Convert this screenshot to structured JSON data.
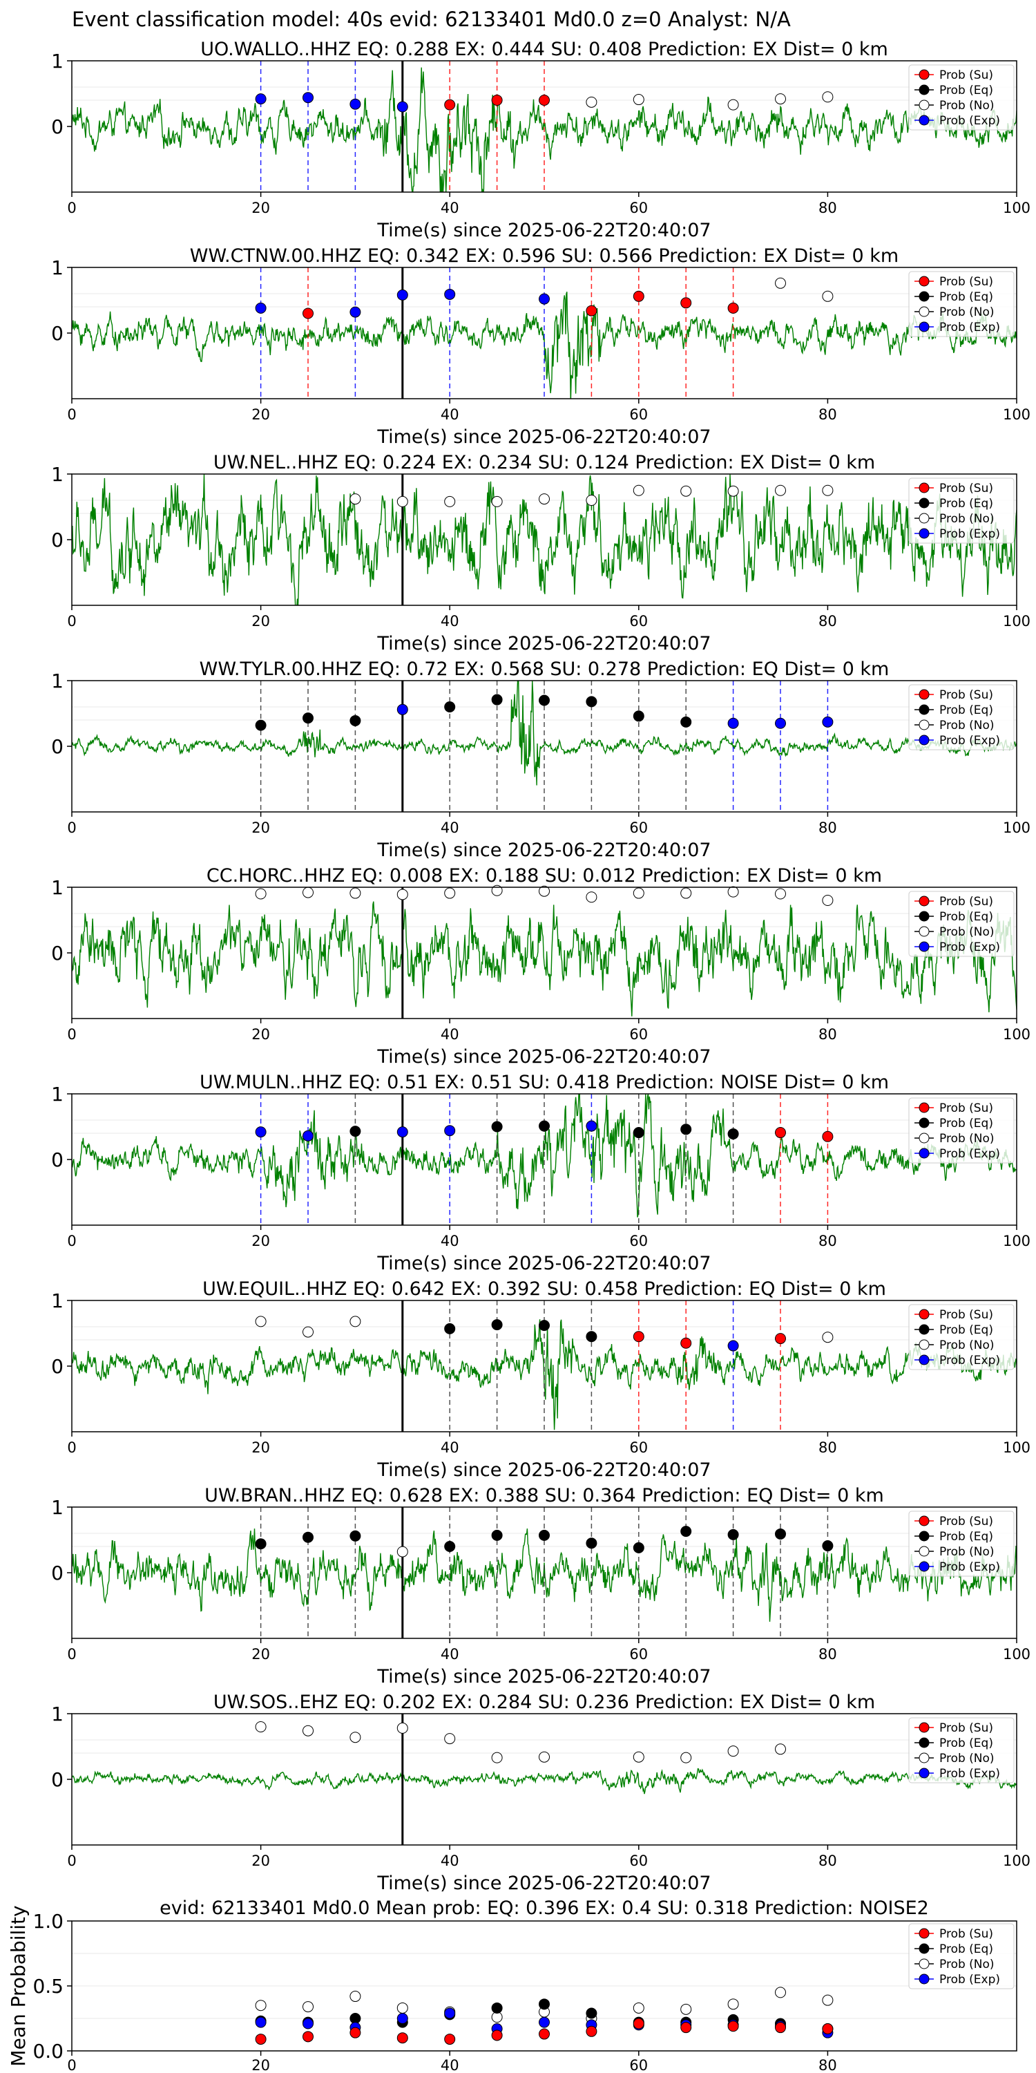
{
  "suptitle": "Event classification model: 40s evid: 62133401 Md0.0 z=0 Analyst: N/A",
  "xlabel": "Time(s) since 2025-06-22T20:40:07",
  "legend": [
    "Prob (Su)",
    "Prob (Eq)",
    "Prob (No)",
    "Prob (Exp)"
  ],
  "colors": {
    "su": "#ff0000",
    "eq": "#000000",
    "no": "#ffffff",
    "exp": "#0000ff",
    "trace": "#008000",
    "marker_line": "#000000"
  },
  "chart_data": [
    {
      "type": "scatter",
      "station": "UO.WALLO..HHZ",
      "eq": "0.288",
      "ex": "0.444",
      "su": "0.408",
      "prediction": "EX",
      "dist": "0 km",
      "title": "UO.WALLO..HHZ   EQ: 0.288  EX: 0.444  SU: 0.408   Prediction: EX    Dist= 0 km",
      "xlim": [
        0,
        100
      ],
      "ylim": [
        -1,
        1
      ],
      "yticks": [
        "1",
        "0"
      ],
      "xticks": [
        "0",
        "20",
        "40",
        "60",
        "80",
        "100"
      ],
      "amp": 0.55,
      "burst": [
        [
          33,
          47,
          1.9
        ]
      ],
      "points": [
        [
          20,
          "exp",
          0.42
        ],
        [
          25,
          "exp",
          0.44
        ],
        [
          30,
          "exp",
          0.34
        ],
        [
          35,
          "exp",
          0.3
        ],
        [
          40,
          "su",
          0.33
        ],
        [
          45,
          "su",
          0.4
        ],
        [
          50,
          "su",
          0.4
        ],
        [
          55,
          "no",
          0.37
        ],
        [
          60,
          "no",
          0.41
        ],
        [
          70,
          "no",
          0.33
        ],
        [
          75,
          "no",
          0.42
        ],
        [
          80,
          "no",
          0.45
        ]
      ]
    },
    {
      "type": "scatter",
      "station": "WW.CTNW.00.HHZ",
      "eq": "0.342",
      "ex": "0.596",
      "su": "0.566",
      "prediction": "EX",
      "dist": "0 km",
      "title": "WW.CTNW.00.HHZ   EQ: 0.342  EX: 0.596  SU: 0.566   Prediction: EX    Dist= 0 km",
      "xlim": [
        0,
        100
      ],
      "ylim": [
        -1,
        1
      ],
      "yticks": [
        "1",
        "0"
      ],
      "xticks": [
        "0",
        "20",
        "40",
        "60",
        "80",
        "100"
      ],
      "amp": 0.45,
      "burst": [
        [
          50,
          56,
          2.0
        ]
      ],
      "points": [
        [
          20,
          "exp",
          0.38
        ],
        [
          25,
          "su",
          0.3
        ],
        [
          30,
          "exp",
          0.32
        ],
        [
          35,
          "exp",
          0.58
        ],
        [
          40,
          "exp",
          0.59
        ],
        [
          50,
          "exp",
          0.52
        ],
        [
          55,
          "su",
          0.34
        ],
        [
          60,
          "su",
          0.56
        ],
        [
          65,
          "su",
          0.46
        ],
        [
          70,
          "su",
          0.38
        ],
        [
          75,
          "no",
          0.76
        ],
        [
          80,
          "no",
          0.56
        ]
      ]
    },
    {
      "type": "scatter",
      "station": "UW.NEL..HHZ",
      "eq": "0.224",
      "ex": "0.234",
      "su": "0.124",
      "prediction": "EX",
      "dist": "0 km",
      "title": "UW.NEL..HHZ   EQ: 0.224  EX: 0.234  SU: 0.124   Prediction: EX    Dist= 0 km",
      "xlim": [
        0,
        100
      ],
      "ylim": [
        -1,
        1
      ],
      "yticks": [
        "1",
        "0"
      ],
      "xticks": [
        "0",
        "20",
        "40",
        "60",
        "80",
        "100"
      ],
      "amp": 1.3,
      "burst": [],
      "points": [
        [
          30,
          "no",
          0.62
        ],
        [
          35,
          "no",
          0.58
        ],
        [
          40,
          "no",
          0.58
        ],
        [
          45,
          "no",
          0.58
        ],
        [
          50,
          "no",
          0.62
        ],
        [
          55,
          "no",
          0.6
        ],
        [
          60,
          "no",
          0.75
        ],
        [
          65,
          "no",
          0.74
        ],
        [
          70,
          "no",
          0.74
        ],
        [
          75,
          "no",
          0.75
        ],
        [
          80,
          "no",
          0.75
        ]
      ]
    },
    {
      "type": "scatter",
      "station": "WW.TYLR.00.HHZ",
      "eq": "0.72",
      "ex": "0.568",
      "su": "0.278",
      "prediction": "EQ",
      "dist": "0 km",
      "title": "WW.TYLR.00.HHZ   EQ: 0.72  EX: 0.568  SU: 0.278   Prediction: EQ    Dist= 0 km",
      "xlim": [
        0,
        100
      ],
      "ylim": [
        -1,
        1
      ],
      "yticks": [
        "1",
        "0"
      ],
      "xticks": [
        "0",
        "20",
        "40",
        "60",
        "80",
        "100"
      ],
      "amp": 0.2,
      "burst": [
        [
          24.5,
          26.5,
          1.1
        ],
        [
          46.5,
          49.5,
          2.2
        ]
      ],
      "points": [
        [
          20,
          "eq",
          0.32
        ],
        [
          25,
          "eq",
          0.43
        ],
        [
          30,
          "eq",
          0.39
        ],
        [
          35,
          "exp",
          0.56
        ],
        [
          40,
          "eq",
          0.6
        ],
        [
          45,
          "eq",
          0.71
        ],
        [
          50,
          "eq",
          0.7
        ],
        [
          55,
          "eq",
          0.68
        ],
        [
          60,
          "eq",
          0.46
        ],
        [
          65,
          "eq",
          0.37
        ],
        [
          70,
          "exp",
          0.35
        ],
        [
          75,
          "exp",
          0.35
        ],
        [
          80,
          "exp",
          0.37
        ]
      ]
    },
    {
      "type": "scatter",
      "station": "CC.HORC..HHZ",
      "eq": "0.008",
      "ex": "0.188",
      "su": "0.012",
      "prediction": "EX",
      "dist": "0 km",
      "title": "CC.HORC..HHZ   EQ: 0.008  EX: 0.188  SU: 0.012   Prediction: EX    Dist= 0 km",
      "xlim": [
        0,
        100
      ],
      "ylim": [
        -1,
        1
      ],
      "yticks": [
        "1",
        "0"
      ],
      "xticks": [
        "0",
        "20",
        "40",
        "60",
        "80",
        "100"
      ],
      "amp": 1.1,
      "burst": [],
      "points": [
        [
          20,
          "no",
          0.9
        ],
        [
          25,
          "no",
          0.92
        ],
        [
          30,
          "no",
          0.91
        ],
        [
          35,
          "no",
          0.89
        ],
        [
          40,
          "no",
          0.91
        ],
        [
          45,
          "no",
          0.95
        ],
        [
          50,
          "no",
          0.94
        ],
        [
          55,
          "no",
          0.85
        ],
        [
          60,
          "no",
          0.91
        ],
        [
          65,
          "no",
          0.91
        ],
        [
          70,
          "no",
          0.93
        ],
        [
          75,
          "no",
          0.9
        ],
        [
          80,
          "no",
          0.8
        ]
      ]
    },
    {
      "type": "scatter",
      "station": "UW.MULN..HHZ",
      "eq": "0.51",
      "ex": "0.51",
      "su": "0.418",
      "prediction": "NOISE",
      "dist": "0 km",
      "title": "UW.MULN..HHZ   EQ: 0.51  EX: 0.51  SU: 0.418   Prediction: NOISE    Dist= 0 km",
      "xlim": [
        0,
        100
      ],
      "ylim": [
        -1,
        1
      ],
      "yticks": [
        "1",
        "0"
      ],
      "xticks": [
        "0",
        "20",
        "40",
        "60",
        "80",
        "100"
      ],
      "amp": 0.45,
      "burst": [
        [
          20,
          31,
          1.3
        ],
        [
          45,
          69,
          1.6
        ]
      ],
      "points": [
        [
          20,
          "exp",
          0.42
        ],
        [
          25,
          "exp",
          0.36
        ],
        [
          30,
          "eq",
          0.43
        ],
        [
          35,
          "exp",
          0.42
        ],
        [
          40,
          "exp",
          0.44
        ],
        [
          45,
          "eq",
          0.5
        ],
        [
          50,
          "eq",
          0.51
        ],
        [
          55,
          "exp",
          0.51
        ],
        [
          60,
          "eq",
          0.41
        ],
        [
          65,
          "eq",
          0.46
        ],
        [
          70,
          "eq",
          0.39
        ],
        [
          75,
          "su",
          0.41
        ],
        [
          80,
          "su",
          0.35
        ]
      ]
    },
    {
      "type": "scatter",
      "station": "UW.EQUIL..HHZ",
      "eq": "0.642",
      "ex": "0.392",
      "su": "0.458",
      "prediction": "EQ",
      "dist": "0 km",
      "title": "UW.EQUIL..HHZ   EQ: 0.642  EX: 0.392  SU: 0.458   Prediction: EQ    Dist= 0 km",
      "xlim": [
        0,
        100
      ],
      "ylim": [
        -1,
        1
      ],
      "yticks": [
        "1",
        "0"
      ],
      "xticks": [
        "0",
        "20",
        "40",
        "60",
        "80",
        "100"
      ],
      "amp": 0.45,
      "burst": [
        [
          49,
          53,
          1.9
        ],
        [
          64,
          68,
          1.2
        ]
      ],
      "points": [
        [
          20,
          "no",
          0.68
        ],
        [
          25,
          "no",
          0.52
        ],
        [
          30,
          "no",
          0.68
        ],
        [
          40,
          "eq",
          0.57
        ],
        [
          45,
          "eq",
          0.63
        ],
        [
          50,
          "eq",
          0.62
        ],
        [
          55,
          "eq",
          0.45
        ],
        [
          60,
          "su",
          0.45
        ],
        [
          65,
          "su",
          0.35
        ],
        [
          70,
          "exp",
          0.31
        ],
        [
          75,
          "su",
          0.42
        ],
        [
          80,
          "no",
          0.44
        ]
      ]
    },
    {
      "type": "scatter",
      "station": "UW.BRAN..HHZ",
      "eq": "0.628",
      "ex": "0.388",
      "su": "0.364",
      "prediction": "EQ",
      "dist": "0 km",
      "title": "UW.BRAN..HHZ   EQ: 0.628  EX: 0.388  SU: 0.364   Prediction: EQ    Dist= 0 km",
      "xlim": [
        0,
        100
      ],
      "ylim": [
        -1,
        1
      ],
      "yticks": [
        "1",
        "0"
      ],
      "xticks": [
        "0",
        "20",
        "40",
        "60",
        "80",
        "100"
      ],
      "amp": 0.75,
      "burst": [
        [
          72,
          75,
          1.3
        ]
      ],
      "points": [
        [
          20,
          "eq",
          0.44
        ],
        [
          25,
          "eq",
          0.54
        ],
        [
          30,
          "eq",
          0.56
        ],
        [
          35,
          "no",
          0.32
        ],
        [
          40,
          "eq",
          0.4
        ],
        [
          45,
          "eq",
          0.57
        ],
        [
          50,
          "eq",
          0.57
        ],
        [
          55,
          "eq",
          0.45
        ],
        [
          60,
          "eq",
          0.38
        ],
        [
          65,
          "eq",
          0.63
        ],
        [
          70,
          "eq",
          0.58
        ],
        [
          75,
          "eq",
          0.59
        ],
        [
          80,
          "eq",
          0.41
        ]
      ]
    },
    {
      "type": "scatter",
      "station": "UW.SOS..EHZ",
      "eq": "0.202",
      "ex": "0.284",
      "su": "0.236",
      "prediction": "EX",
      "dist": "0 km",
      "title": "UW.SOS..EHZ   EQ: 0.202  EX: 0.284  SU: 0.236   Prediction: EX    Dist= 0 km",
      "xlim": [
        0,
        100
      ],
      "ylim": [
        -1,
        1
      ],
      "yticks": [
        "1",
        "0"
      ],
      "xticks": [
        "0",
        "20",
        "40",
        "60",
        "80",
        "100"
      ],
      "amp": 0.18,
      "burst": [
        [
          50,
          72,
          0.3
        ]
      ],
      "points": [
        [
          20,
          "no",
          0.8
        ],
        [
          25,
          "no",
          0.74
        ],
        [
          30,
          "no",
          0.64
        ],
        [
          35,
          "no",
          0.78
        ],
        [
          40,
          "no",
          0.62
        ],
        [
          45,
          "no",
          0.33
        ],
        [
          50,
          "no",
          0.34
        ],
        [
          60,
          "no",
          0.34
        ],
        [
          65,
          "no",
          0.33
        ],
        [
          70,
          "no",
          0.43
        ],
        [
          75,
          "no",
          0.46
        ]
      ]
    },
    {
      "type": "scatter",
      "title": "evid: 62133401  Md0.0   Mean prob:    EQ: 0.396  EX: 0.4  SU: 0.318   Prediction: NOISE2",
      "ylabel": "Mean Probability",
      "xlim": [
        0,
        100
      ],
      "ylim": [
        0,
        1
      ],
      "yticks": [
        "1.0",
        "0.5",
        "0.0"
      ],
      "xticks": [
        "0",
        "20",
        "40",
        "60",
        "80"
      ],
      "x": [
        20,
        25,
        30,
        35,
        40,
        45,
        50,
        55,
        60,
        65,
        70,
        75,
        80
      ],
      "series": [
        {
          "key": "no",
          "values": [
            0.35,
            0.34,
            0.42,
            0.33,
            0.3,
            0.26,
            0.3,
            0.25,
            0.33,
            0.32,
            0.36,
            0.45,
            0.39
          ]
        },
        {
          "key": "eq",
          "values": [
            0.23,
            0.22,
            0.25,
            0.22,
            0.28,
            0.33,
            0.36,
            0.29,
            0.22,
            0.22,
            0.24,
            0.21,
            0.17
          ]
        },
        {
          "key": "exp",
          "values": [
            0.22,
            0.21,
            0.18,
            0.25,
            0.29,
            0.17,
            0.22,
            0.2,
            0.2,
            0.2,
            0.2,
            0.19,
            0.14
          ]
        },
        {
          "key": "su",
          "values": [
            0.09,
            0.11,
            0.14,
            0.1,
            0.09,
            0.12,
            0.13,
            0.15,
            0.21,
            0.18,
            0.19,
            0.18,
            0.17
          ]
        }
      ]
    }
  ]
}
